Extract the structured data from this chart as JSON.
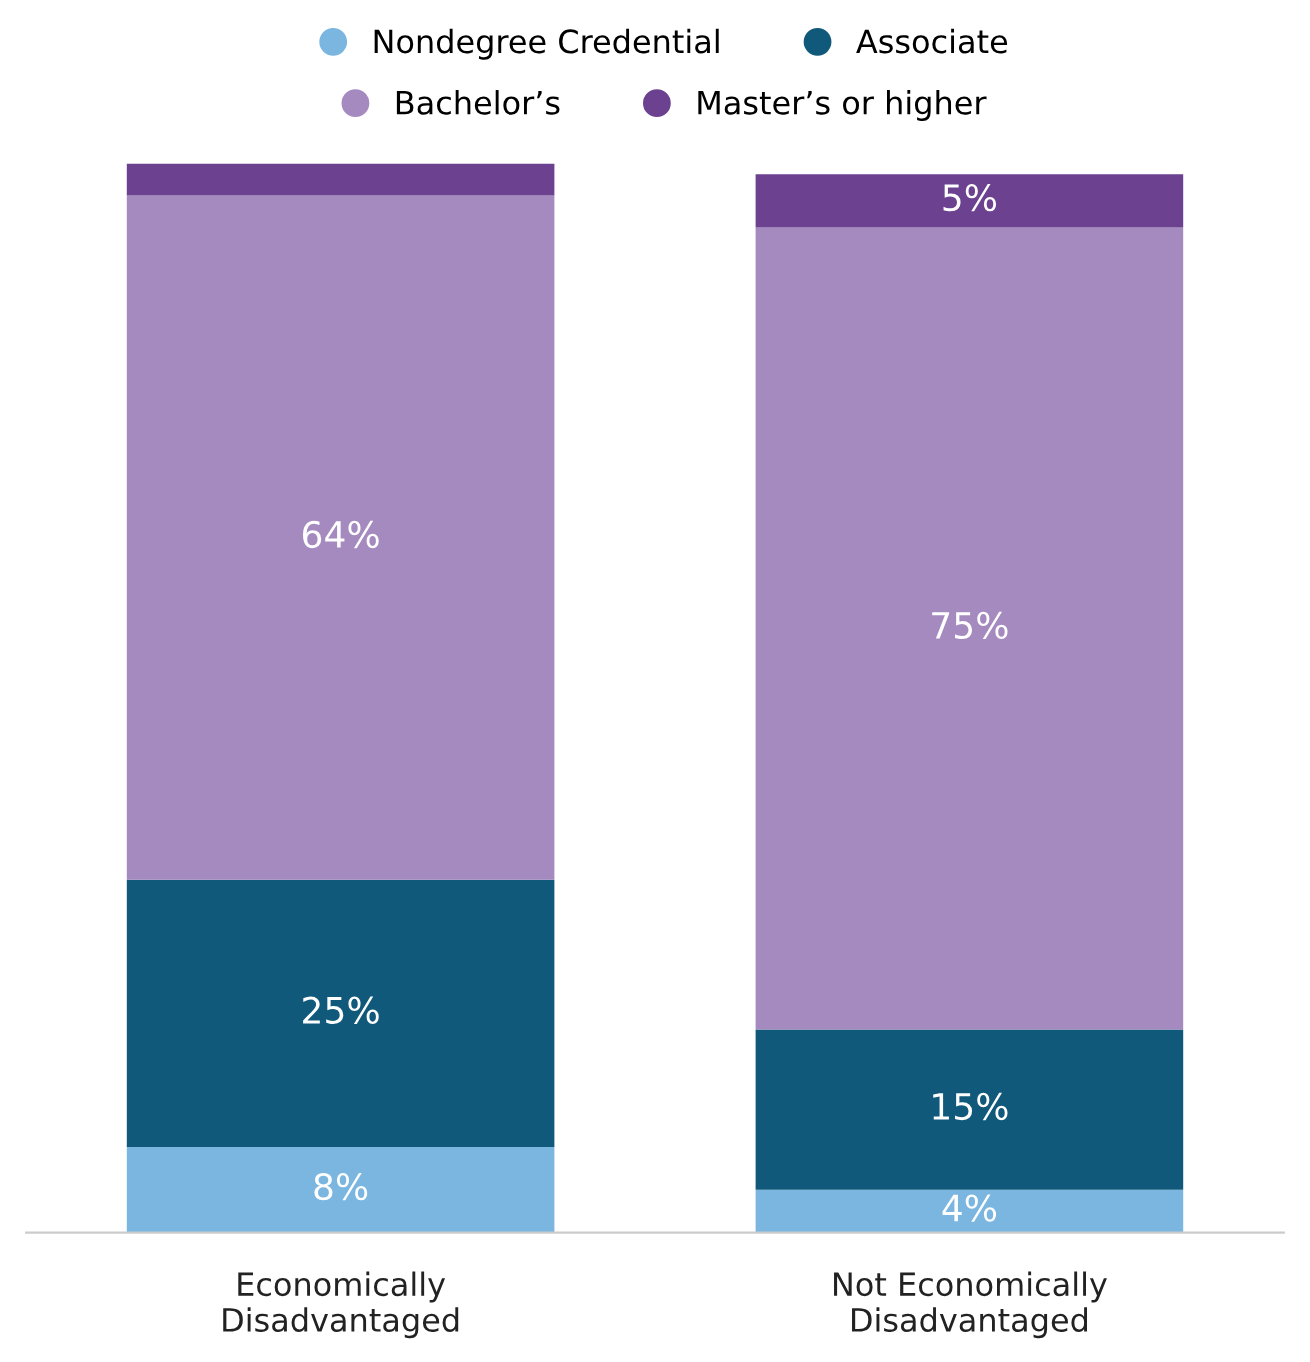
{
  "chart_data": {
    "type": "bar",
    "stacked": true,
    "categories": [
      "Economically\nDisadvantaged",
      "Not Economically\nDisadvantaged"
    ],
    "series": [
      {
        "name": "Nondegree Credential",
        "color": "#7ab6e0",
        "values": [
          8,
          4
        ],
        "value_labels": [
          "8%",
          "4%"
        ]
      },
      {
        "name": "Associate",
        "color": "#10597a",
        "values": [
          25,
          15
        ],
        "value_labels": [
          "25%",
          "15%"
        ]
      },
      {
        "name": "Bachelor’s",
        "color": "#a58ac0",
        "values": [
          64,
          75
        ],
        "value_labels": [
          "64%",
          "75%"
        ]
      },
      {
        "name": "Master’s or higher",
        "color": "#6b4190",
        "values": [
          3,
          5
        ],
        "value_labels": [
          null,
          "5%"
        ]
      }
    ],
    "ylim": [
      0,
      100
    ],
    "legend": "top",
    "grid": false
  }
}
